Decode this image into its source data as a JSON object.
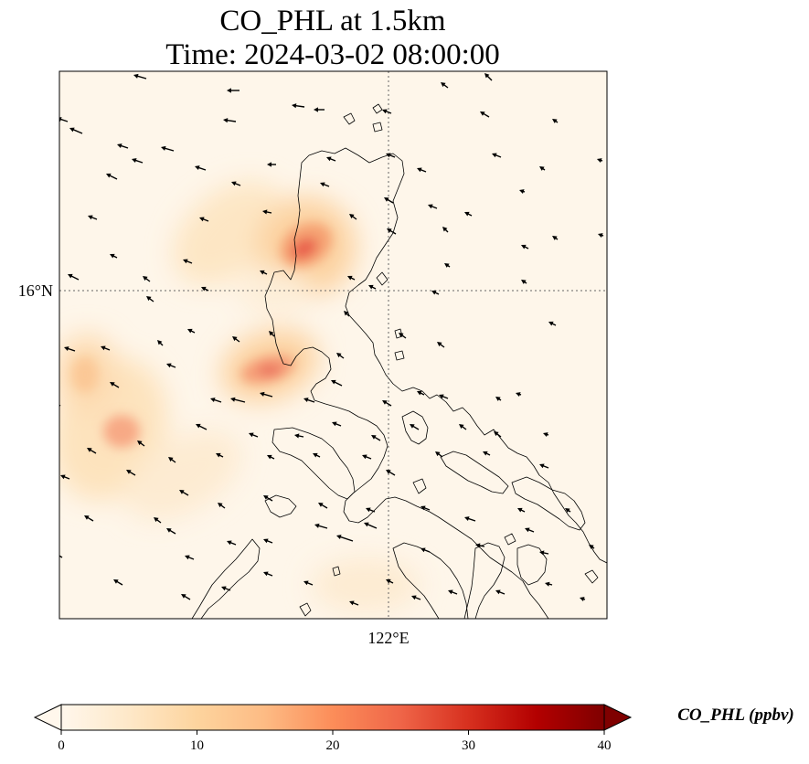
{
  "title": {
    "line1": "CO_PHL at 1.5km",
    "line2": "Time: 2024-03-02 08:00:00"
  },
  "map": {
    "lat_ticks": [
      {
        "value": 16,
        "label": "16°N"
      }
    ],
    "lon_ticks": [
      {
        "value": 122,
        "label": "122°E"
      }
    ],
    "gridlines": "dotted",
    "colormap": "OrRd",
    "background_color": "#fef6ea"
  },
  "colorbar": {
    "label": "CO_PHL (ppbv)",
    "ticks": [
      {
        "value": 0,
        "label": "0"
      },
      {
        "value": 10,
        "label": "10"
      },
      {
        "value": 20,
        "label": "20"
      },
      {
        "value": 30,
        "label": "30"
      },
      {
        "value": 40,
        "label": "40"
      }
    ],
    "range": [
      0,
      40
    ],
    "extend": "both",
    "colors": [
      "#fff7ec",
      "#fdd49e",
      "#fc8d59",
      "#d7301f",
      "#7f0000"
    ]
  },
  "chart_data": {
    "type": "heatmap",
    "title": "CO_PHL at 1.5km\nTime: 2024-03-02 08:00:00",
    "variable": "CO_PHL",
    "units": "ppbv",
    "level": "1.5km",
    "time": "2024-03-02 08:00:00",
    "vmin": 0,
    "vmax": 40,
    "concentration_hotspots": [
      {
        "lon": 121.2,
        "lat": 16.25,
        "value": 28
      },
      {
        "lon": 120.9,
        "lat": 15.57,
        "value": 23
      },
      {
        "lon": 119.2,
        "lat": 14.95,
        "value": 16
      },
      {
        "lon": 118.8,
        "lat": 15.45,
        "value": 9
      }
    ],
    "wind_vectors": "arrows predominantly toward the west-southwest"
  }
}
